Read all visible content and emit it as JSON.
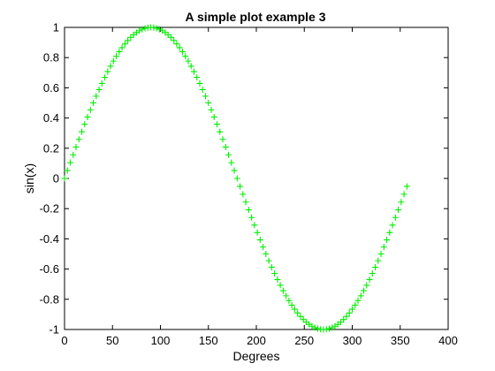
{
  "chart_data": {
    "type": "scatter",
    "title": "A simple plot example 3",
    "xlabel": "Degrees",
    "ylabel": "sin(x)",
    "xlim": [
      0,
      400
    ],
    "ylim": [
      -1,
      1
    ],
    "x_ticks": [
      0,
      50,
      100,
      150,
      200,
      250,
      300,
      350,
      400
    ],
    "y_ticks": [
      -1,
      -0.8,
      -0.6,
      -0.4,
      -0.2,
      0,
      0.2,
      0.4,
      0.6,
      0.8,
      1
    ],
    "x_tick_labels": [
      "0",
      "50",
      "100",
      "150",
      "200",
      "250",
      "300",
      "350",
      "400"
    ],
    "y_tick_labels": [
      "-1",
      "-0.8",
      "-0.6",
      "-0.4",
      "-0.2",
      "0",
      "0.2",
      "0.4",
      "0.6",
      "0.8",
      "1"
    ],
    "grid": false,
    "marker": "+",
    "marker_color": "#00ee00",
    "series": [
      {
        "x": [
          0,
          3,
          6,
          9,
          12,
          15,
          18,
          21,
          24,
          27,
          30,
          33,
          36,
          39,
          42,
          45,
          48,
          51,
          54,
          57,
          60,
          63,
          66,
          69,
          72,
          75,
          78,
          81,
          84,
          87,
          90,
          93,
          96,
          99,
          102,
          105,
          108,
          111,
          114,
          117,
          120,
          123,
          126,
          129,
          132,
          135,
          138,
          141,
          144,
          147,
          150,
          153,
          156,
          159,
          162,
          165,
          168,
          171,
          174,
          177,
          180,
          183,
          186,
          189,
          192,
          195,
          198,
          201,
          204,
          207,
          210,
          213,
          216,
          219,
          222,
          225,
          228,
          231,
          234,
          237,
          240,
          243,
          246,
          249,
          252,
          255,
          258,
          261,
          264,
          267,
          270,
          273,
          276,
          279,
          282,
          285,
          288,
          291,
          294,
          297,
          300,
          303,
          306,
          309,
          312,
          315,
          318,
          321,
          324,
          327,
          330,
          333,
          336,
          339,
          342,
          345,
          348,
          351,
          354,
          357
        ],
        "y": [
          0.0,
          0.0523,
          0.1045,
          0.1564,
          0.2079,
          0.2588,
          0.309,
          0.3584,
          0.4067,
          0.454,
          0.5,
          0.5446,
          0.5878,
          0.6293,
          0.6691,
          0.7071,
          0.7431,
          0.7771,
          0.809,
          0.8387,
          0.866,
          0.891,
          0.9135,
          0.9336,
          0.9511,
          0.9659,
          0.9781,
          0.9877,
          0.9945,
          0.9986,
          1.0,
          0.9986,
          0.9945,
          0.9877,
          0.9781,
          0.9659,
          0.9511,
          0.9336,
          0.9135,
          0.891,
          0.866,
          0.8387,
          0.809,
          0.7771,
          0.7431,
          0.7071,
          0.6691,
          0.6293,
          0.5878,
          0.5446,
          0.5,
          0.454,
          0.4067,
          0.3584,
          0.309,
          0.2588,
          0.2079,
          0.1564,
          0.1045,
          0.0523,
          0.0,
          -0.0523,
          -0.1045,
          -0.1564,
          -0.2079,
          -0.2588,
          -0.309,
          -0.3584,
          -0.4067,
          -0.454,
          -0.5,
          -0.5446,
          -0.5878,
          -0.6293,
          -0.6691,
          -0.7071,
          -0.7431,
          -0.7771,
          -0.809,
          -0.8387,
          -0.866,
          -0.891,
          -0.9135,
          -0.9336,
          -0.9511,
          -0.9659,
          -0.9781,
          -0.9877,
          -0.9945,
          -0.9986,
          -1.0,
          -0.9986,
          -0.9945,
          -0.9877,
          -0.9781,
          -0.9659,
          -0.9511,
          -0.9336,
          -0.9135,
          -0.891,
          -0.866,
          -0.8387,
          -0.809,
          -0.7771,
          -0.7431,
          -0.7071,
          -0.6691,
          -0.6293,
          -0.5878,
          -0.5446,
          -0.5,
          -0.454,
          -0.4067,
          -0.3584,
          -0.309,
          -0.2588,
          -0.2079,
          -0.1564,
          -0.1045,
          -0.0523
        ]
      }
    ]
  }
}
